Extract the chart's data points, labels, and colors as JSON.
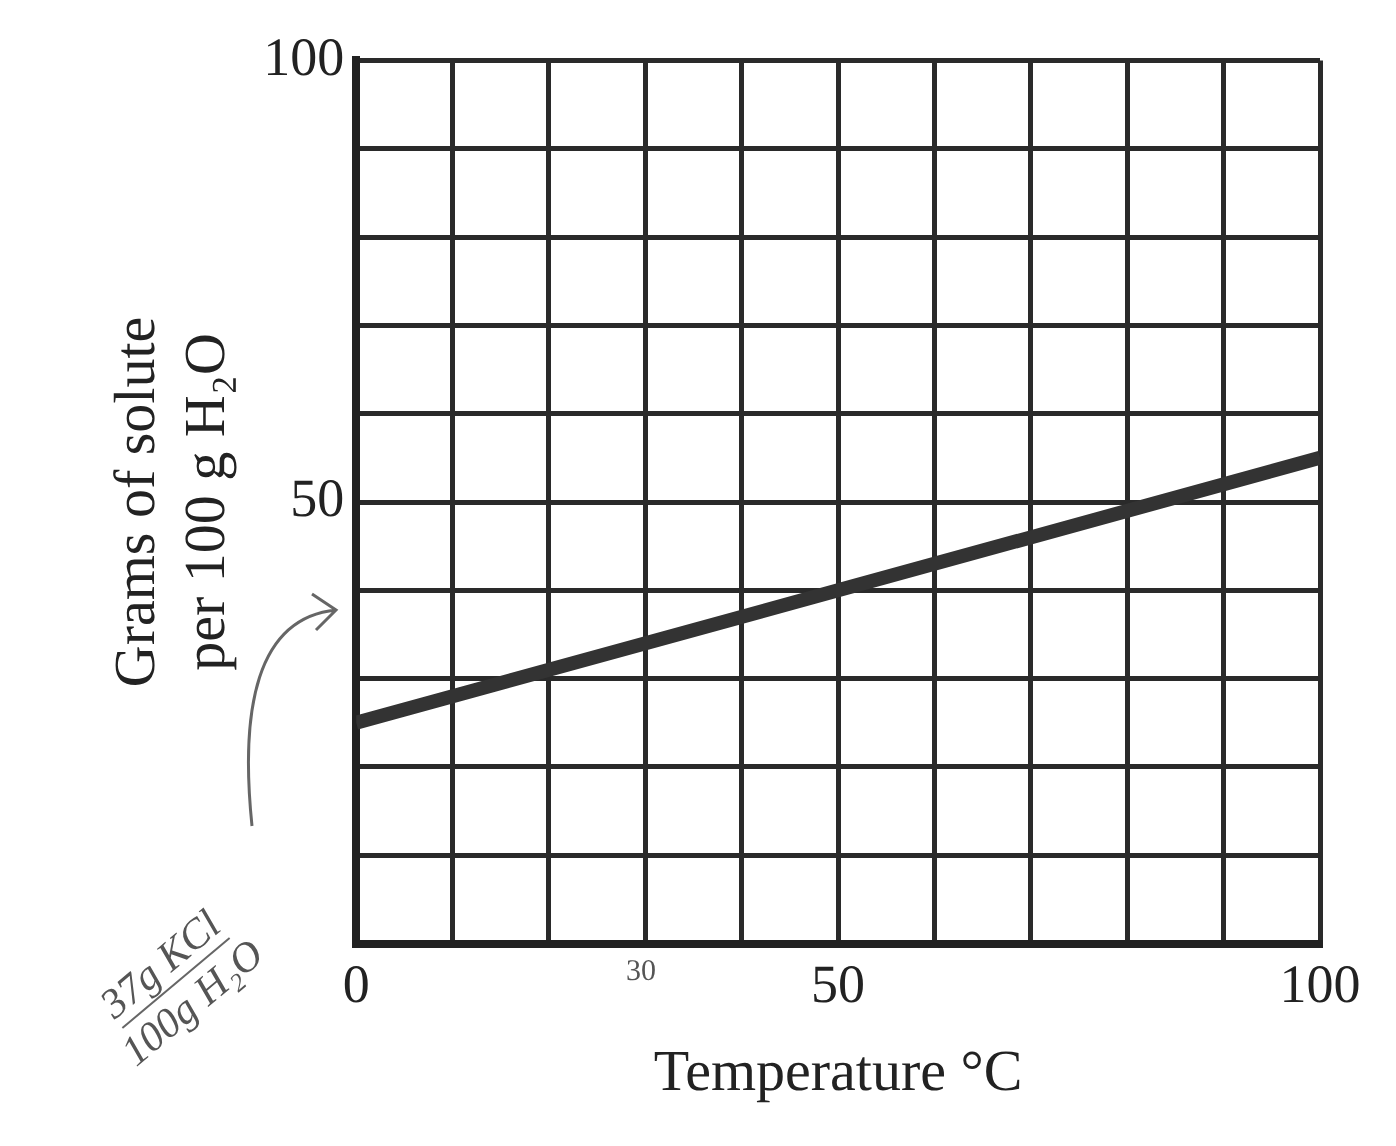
{
  "chart_data": {
    "type": "line",
    "xlabel": "Temperature °C",
    "ylabel": "Grams of solute\nper 100 g H₂O",
    "x": [
      0,
      50,
      100
    ],
    "series": [
      {
        "color": "#333333",
        "values": [
          25,
          40,
          55
        ]
      }
    ],
    "xlim": [
      0,
      100
    ],
    "ylim": [
      0,
      100
    ],
    "xticks": [
      0,
      {
        "value": 10,
        "label": null
      },
      {
        "value": 20,
        "label": null
      },
      {
        "value": 30,
        "label": null
      },
      {
        "value": 40,
        "label": null
      },
      50,
      {
        "value": 60,
        "label": null
      },
      {
        "value": 70,
        "label": null
      },
      {
        "value": 80,
        "label": null
      },
      {
        "value": 90,
        "label": null
      },
      100
    ],
    "yticks": [
      {
        "value": 0,
        "label": null
      },
      {
        "value": 10,
        "label": null
      },
      {
        "value": 20,
        "label": null
      },
      {
        "value": 30,
        "label": null
      },
      {
        "value": 40,
        "label": null
      },
      50,
      {
        "value": 60,
        "label": null
      },
      {
        "value": 70,
        "label": null
      },
      {
        "value": 80,
        "label": null
      },
      {
        "value": 90,
        "label": null
      },
      100
    ],
    "grid": true,
    "marker": "none",
    "line_style": "solid",
    "annotations": [
      "37g KCl\n100g H₂O",
      "30"
    ]
  }
}
